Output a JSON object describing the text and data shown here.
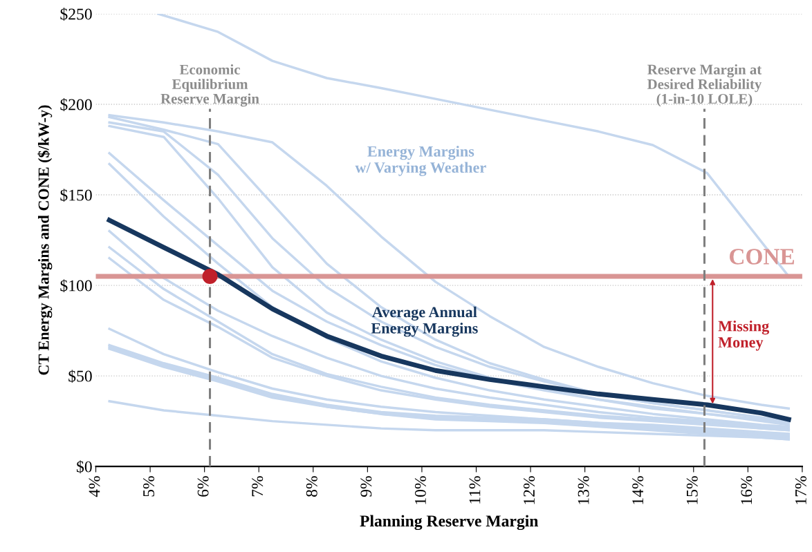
{
  "chart_data": {
    "type": "line",
    "xlabel": "Planning Reserve Margin",
    "ylabel": "CT Energy Margins and CONE ($/kW-y)",
    "x": [
      4.25,
      5.25,
      6.25,
      7.25,
      8.25,
      9.25,
      10.25,
      11.25,
      12.25,
      13.25,
      14.25,
      15.25,
      16.25,
      16.75
    ],
    "xlim": [
      4,
      17
    ],
    "xticks": [
      {
        "value": 4,
        "label": "4%"
      },
      {
        "value": 5,
        "label": "5%"
      },
      {
        "value": 6,
        "label": "6%"
      },
      {
        "value": 7,
        "label": "7%"
      },
      {
        "value": 8,
        "label": "8%"
      },
      {
        "value": 9,
        "label": "9%"
      },
      {
        "value": 10,
        "label": "10%"
      },
      {
        "value": 11,
        "label": "11%"
      },
      {
        "value": 12,
        "label": "12%"
      },
      {
        "value": 13,
        "label": "13%"
      },
      {
        "value": 14,
        "label": "14%"
      },
      {
        "value": 15,
        "label": "15%"
      },
      {
        "value": 16,
        "label": "16%"
      },
      {
        "value": 17,
        "label": "17%"
      }
    ],
    "ylim": [
      0,
      250
    ],
    "yticks": [
      {
        "value": 0,
        "label": "$0"
      },
      {
        "value": 50,
        "label": "$50"
      },
      {
        "value": 100,
        "label": "$100"
      },
      {
        "value": 150,
        "label": "$150"
      },
      {
        "value": 200,
        "label": "$200"
      },
      {
        "value": 250,
        "label": "$250"
      }
    ],
    "grid": "y",
    "legend": false,
    "marker": "none",
    "line_style": "solid",
    "series": [
      {
        "color": "#c5d7ee",
        "x": [
          5.15,
          6.25,
          7.25,
          8.25,
          9.25,
          10.25,
          11.25,
          12.25,
          13.25,
          14.25,
          15.25,
          16.75
        ],
        "values": [
          250,
          240,
          224,
          214.5,
          209,
          203,
          197,
          191,
          185,
          177.5,
          162,
          105
        ]
      },
      {
        "color": "#c5d7ee",
        "values": [
          194,
          190,
          185,
          179,
          155,
          127,
          102,
          83,
          66,
          55,
          46,
          39,
          34,
          32
        ]
      },
      {
        "color": "#c5d7ee",
        "values": [
          193,
          186,
          178,
          145,
          112,
          88,
          70,
          57,
          48,
          40,
          35,
          31,
          27,
          25
        ]
      },
      {
        "color": "#c5d7ee",
        "values": [
          190,
          185,
          161,
          126,
          99,
          80,
          66,
          55,
          47,
          40,
          35,
          31,
          27,
          25
        ]
      },
      {
        "color": "#c5d7ee",
        "values": [
          188,
          182,
          148,
          110,
          85,
          70,
          58,
          49,
          43,
          37,
          33,
          29,
          26,
          24
        ]
      },
      {
        "color": "#c5d7ee",
        "values": [
          173,
          147,
          122,
          97,
          80,
          67,
          56,
          48,
          42,
          37,
          32,
          29,
          25,
          23
        ]
      },
      {
        "color": "#c5d7ee",
        "values": [
          167,
          138,
          112,
          88,
          71,
          58,
          49,
          42,
          37,
          33,
          29,
          26,
          23,
          22
        ]
      },
      {
        "color": "#c5d7ee",
        "values": [
          130,
          104,
          86,
          72,
          60,
          50,
          43,
          38,
          34,
          30,
          27,
          25,
          22,
          21
        ]
      },
      {
        "color": "#c5d7ee",
        "values": [
          121,
          98,
          80,
          62,
          51,
          44,
          38,
          34,
          31,
          28,
          26,
          24,
          21,
          20
        ]
      },
      {
        "color": "#c5d7ee",
        "values": [
          115,
          92,
          77,
          60,
          50,
          42,
          37,
          33,
          30,
          27,
          25,
          23,
          21,
          20
        ]
      },
      {
        "color": "#c5d7ee",
        "values": [
          76,
          62,
          52,
          43,
          37,
          33,
          30,
          28,
          26,
          24,
          23,
          21,
          19,
          18
        ]
      },
      {
        "color": "#c5d7ee",
        "values": [
          67,
          57,
          49,
          40,
          34,
          30,
          28,
          27,
          26,
          24,
          22,
          20,
          18,
          17
        ]
      },
      {
        "color": "#c5d7ee",
        "values": [
          66,
          56,
          48,
          39,
          33,
          29,
          27,
          26,
          25,
          23,
          21,
          19,
          17,
          16
        ]
      },
      {
        "color": "#c5d7ee",
        "values": [
          65,
          55,
          47,
          38,
          33,
          29,
          26,
          25,
          24,
          22,
          20,
          18,
          16,
          15
        ]
      },
      {
        "color": "#c5d7ee",
        "values": [
          36,
          31,
          28,
          25,
          23,
          21,
          20,
          20,
          20,
          19,
          18,
          17,
          16,
          15
        ]
      },
      {
        "name": "Average Annual\nEnergy Margins",
        "color": "#17375e",
        "values": [
          136,
          121,
          106,
          87,
          72,
          61,
          53,
          48,
          44,
          40,
          37,
          34,
          29.5,
          26
        ]
      },
      {
        "type": "scatter",
        "marker": "circle",
        "color": "#c0202a",
        "x": [
          6.1
        ],
        "values": [
          105
        ]
      }
    ],
    "ref_lines": [
      {
        "axis": "y",
        "value": 105,
        "label": "CONE",
        "color": "#d99594",
        "line_style": "solid"
      },
      {
        "axis": "x",
        "value": 6.1,
        "label": "Economic\nEquilibrium\nReserve Margin",
        "color": "#7f7f7f",
        "line_style": "dashed"
      },
      {
        "axis": "x",
        "value": 15.2,
        "label": "Reserve Margin at\nDesired Reliability\n(1-in-10 LOLE)",
        "color": "#7f7f7f",
        "line_style": "dashed"
      }
    ],
    "annotations": [
      "Energy Margins\nw/ Varying Weather",
      "Missing\nMoney"
    ]
  }
}
